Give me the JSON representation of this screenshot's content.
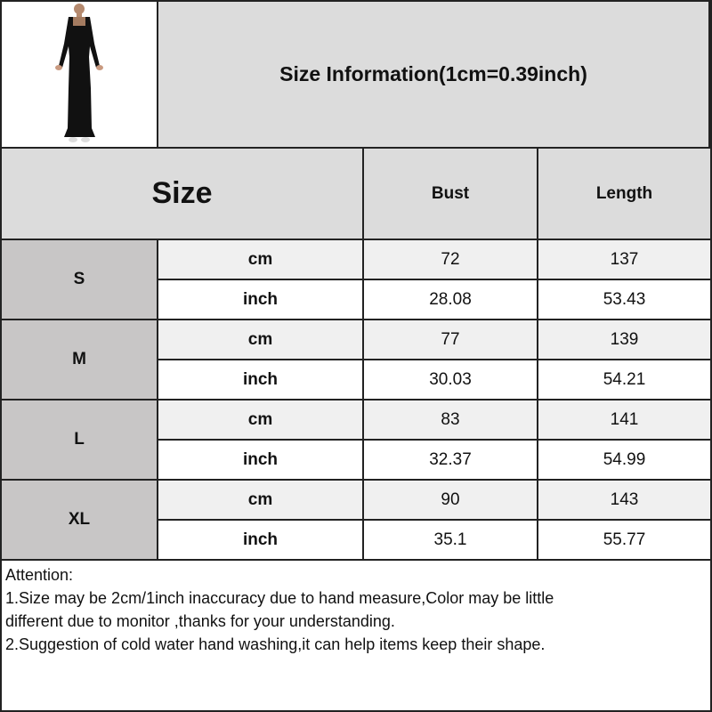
{
  "title": "Size Information(1cm=0.39inch)",
  "header": {
    "size": "Size",
    "bust": "Bust",
    "length": "Length"
  },
  "colors": {
    "header_bg": "#dcdcdc",
    "size_cell_bg": "#c8c6c6",
    "cm_row_bg": "#f0f0f0",
    "inch_row_bg": "#ffffff",
    "border": "#222222"
  },
  "rows": [
    {
      "size": "S",
      "cm": {
        "unit": "cm",
        "bust": "72",
        "length": "137"
      },
      "inch": {
        "unit": "inch",
        "bust": "28.08",
        "length": "53.43"
      }
    },
    {
      "size": "M",
      "cm": {
        "unit": "cm",
        "bust": "77",
        "length": "139"
      },
      "inch": {
        "unit": "inch",
        "bust": "30.03",
        "length": "54.21"
      }
    },
    {
      "size": "L",
      "cm": {
        "unit": "cm",
        "bust": "83",
        "length": "141"
      },
      "inch": {
        "unit": "inch",
        "bust": "32.37",
        "length": "54.99"
      }
    },
    {
      "size": "XL",
      "cm": {
        "unit": "cm",
        "bust": "90",
        "length": "143"
      },
      "inch": {
        "unit": "inch",
        "bust": "35.1",
        "length": "55.77"
      }
    }
  ],
  "notes": {
    "heading": "Attention:",
    "line1": "1.Size may be 2cm/1inch inaccuracy due to hand measure,Color may be little\ndifferent due to monitor ,thanks for your understanding.",
    "line2": "2.Suggestion of cold water hand washing,it can help items keep their shape."
  }
}
